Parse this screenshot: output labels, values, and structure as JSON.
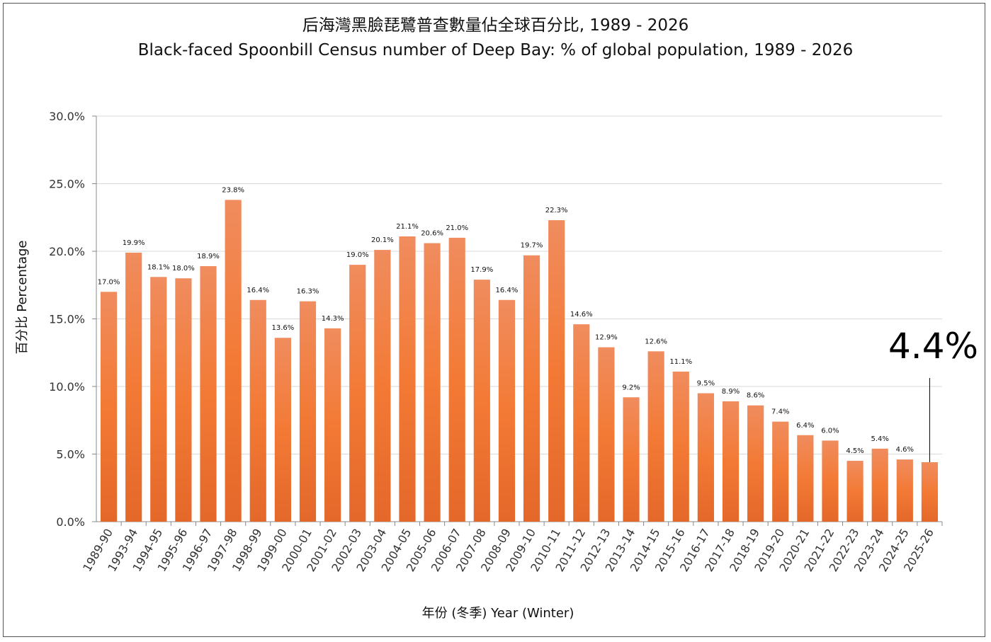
{
  "chart_data": {
    "type": "bar",
    "title": "后海灣黑臉琵鷺普查數量佔全球百分比, 1989 - 2026",
    "subtitle": "Black-faced Spoonbill Census number of Deep Bay: % of global population, 1989 - 2026",
    "xlabel": "年份 (冬季) Year (Winter)",
    "ylabel": "百分比 Percentage",
    "ylim": [
      0,
      30
    ],
    "yticks": [
      "0.0%",
      "5.0%",
      "10.0%",
      "15.0%",
      "20.0%",
      "25.0%",
      "30.0%"
    ],
    "grid": true,
    "categories": [
      "1989-90",
      "1993-94",
      "1994-95",
      "1995-96",
      "1996-97",
      "1997-98",
      "1998-99",
      "1999-00",
      "2000-01",
      "2001-02",
      "2002-03",
      "2003-04",
      "2004-05",
      "2005-06",
      "2006-07",
      "2007-08",
      "2008-09",
      "2009-10",
      "2010-11",
      "2011-12",
      "2012-13",
      "2013-14",
      "2014-15",
      "2015-16",
      "2016-17",
      "2017-18",
      "2018-19",
      "2019-20",
      "2020-21",
      "2021-22",
      "2022-23",
      "2023-24",
      "2024-25",
      "2025-26"
    ],
    "values": [
      17.0,
      19.9,
      18.1,
      18.0,
      18.9,
      23.8,
      16.4,
      13.6,
      16.3,
      14.3,
      19.0,
      20.1,
      21.1,
      20.6,
      21.0,
      17.9,
      16.4,
      19.7,
      22.3,
      14.6,
      12.9,
      9.2,
      12.6,
      11.1,
      9.5,
      8.9,
      8.6,
      7.4,
      6.4,
      6.0,
      4.5,
      5.4,
      4.6,
      4.4
    ],
    "data_labels": [
      "17.0%",
      "19.9%",
      "18.1%",
      "18.0%",
      "18.9%",
      "23.8%",
      "16.4%",
      "13.6%",
      "16.3%",
      "14.3%",
      "19.0%",
      "20.1%",
      "21.1%",
      "20.6%",
      "21.0%",
      "17.9%",
      "16.4%",
      "19.7%",
      "22.3%",
      "14.6%",
      "12.9%",
      "9.2%",
      "12.6%",
      "11.1%",
      "9.5%",
      "8.9%",
      "8.6%",
      "7.4%",
      "6.4%",
      "6.0%",
      "4.5%",
      "5.4%",
      "4.6%",
      ""
    ],
    "annotation": "4.4%",
    "legend": "none",
    "colors": {
      "bar_top": "#f08c5e",
      "bar_mid": "#f37a35",
      "bar_bottom": "#e4682a"
    }
  }
}
